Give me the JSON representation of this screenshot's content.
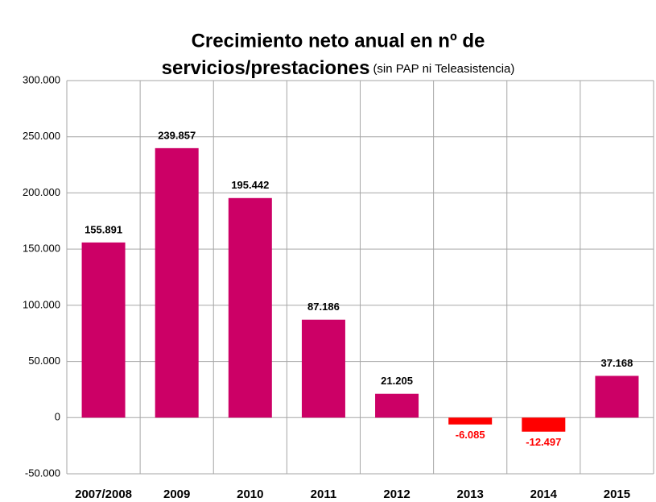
{
  "chart_data": {
    "type": "bar",
    "title": [
      "Crecimiento neto anual en nº de",
      "servicios/prestaciones"
    ],
    "subtitle": "(sin PAP ni Teleasistencia)",
    "categories": [
      "2007/2008",
      "2009",
      "2010",
      "2011",
      "2012",
      "2013",
      "2014",
      "2015"
    ],
    "values": [
      155891,
      239857,
      195442,
      87186,
      21205,
      -6085,
      -12497,
      37168
    ],
    "value_labels": [
      "155.891",
      "239.857",
      "195.442",
      "87.186",
      "21.205",
      "-6.085",
      "-12.497",
      "37.168"
    ],
    "colors": [
      "#cc0066",
      "#cc0066",
      "#cc0066",
      "#cc0066",
      "#cc0066",
      "#ff0000",
      "#ff0000",
      "#cc0066"
    ],
    "ylim": [
      -50000,
      300000
    ],
    "yticks": [
      {
        "value": -50000,
        "label": "-50.000"
      },
      0,
      {
        "value": 50000,
        "label": "50.000"
      },
      {
        "value": 100000,
        "label": "100.000"
      },
      {
        "value": 150000,
        "label": "150.000"
      },
      {
        "value": 200000,
        "label": "200.000"
      },
      {
        "value": 250000,
        "label": "250.000"
      },
      {
        "value": 300000,
        "label": "300.000"
      }
    ],
    "grid": true
  }
}
